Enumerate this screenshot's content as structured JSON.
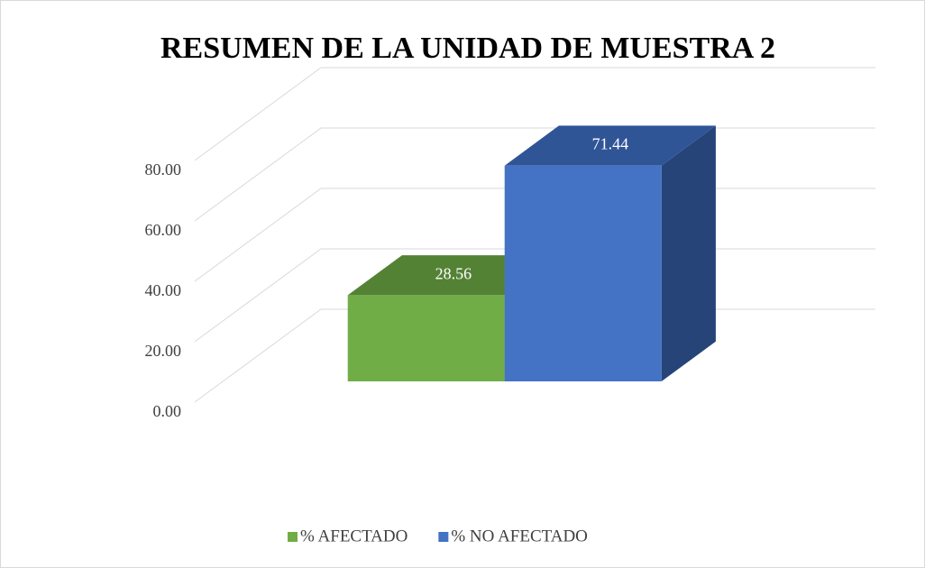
{
  "chart_data": {
    "type": "bar",
    "title": "RESUMEN DE LA UNIDAD DE MUESTRA 2",
    "categories": [
      null
    ],
    "series": [
      {
        "name": "% AFECTADO",
        "color": "#70ad47",
        "top_color": "#548235",
        "side_color": "#4e7a32",
        "values": [
          28.56
        ]
      },
      {
        "name": "% NO AFECTADO",
        "color": "#4472c4",
        "top_color": "#2f5597",
        "side_color": "#264478",
        "values": [
          71.44
        ]
      }
    ],
    "ylim": [
      0,
      80
    ],
    "yticks": [
      {
        "value": 0,
        "label": "0.00"
      },
      {
        "value": 20,
        "label": "20.00"
      },
      {
        "value": 40,
        "label": "40.00"
      },
      {
        "value": 60,
        "label": "60.00"
      },
      {
        "value": 80,
        "label": "80.00"
      }
    ],
    "grid": true,
    "legend": "bottom"
  }
}
